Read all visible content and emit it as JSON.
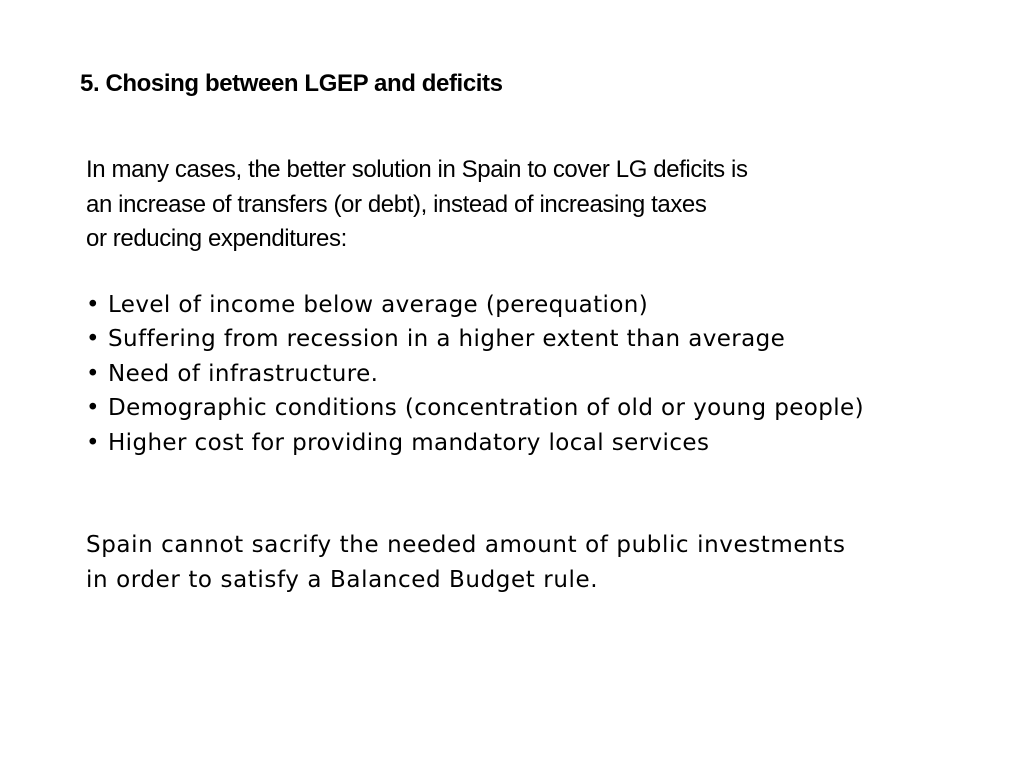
{
  "slide": {
    "title": "5. Chosing between LGEP and deficits",
    "intro_lines": [
      "In many cases, the better solution in Spain to cover LG deficits is",
      "an increase of transfers (or debt), instead of increasing taxes",
      "or reducing expenditures:"
    ],
    "bullet_symbol": "•",
    "bullets": [
      "Level of income below average (perequation)",
      "Suffering from recession in a higher extent than average",
      "Need of infrastructure.",
      "Demographic conditions (concentration of old or young people)",
      "Higher cost for providing mandatory local services"
    ],
    "conclusion_lines": [
      "Spain cannot sacrify the needed amount of public investments",
      "in order to satisfy a Balanced Budget rule."
    ]
  }
}
